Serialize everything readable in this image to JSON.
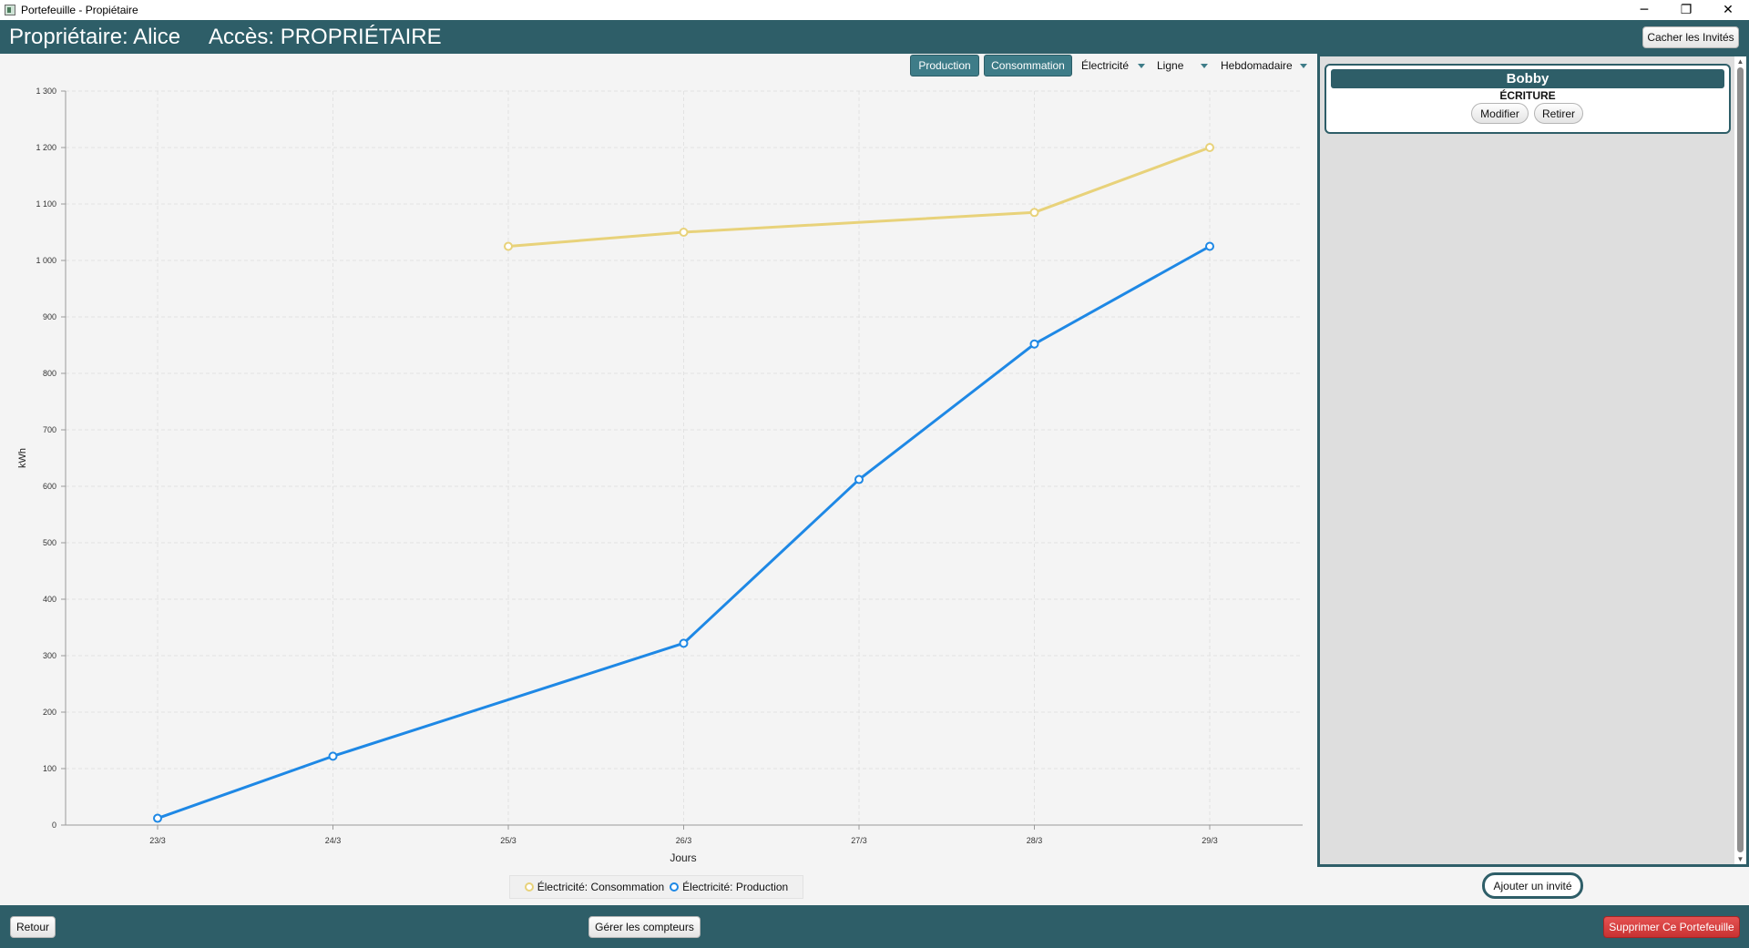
{
  "window": {
    "title": "Portefeuille - Propiétaire",
    "controls": {
      "minimize": "─",
      "maximize": "❐",
      "close": "✕"
    }
  },
  "header": {
    "owner": "Propriétaire: Alice",
    "access": "Accès: PROPRIÉTAIRE",
    "hide_guests_label": "Cacher les Invités"
  },
  "toolbar": {
    "production_label": "Production",
    "consumption_label": "Consommation",
    "energy_select": "Électricité",
    "chart_type_select": "Ligne",
    "period_select": "Hebdomadaire"
  },
  "colors": {
    "accent": "#2e5e68",
    "production_series": "#1e88e5",
    "consumption_series": "#e8d27a",
    "delete": "#d63b3b"
  },
  "chart_data": {
    "type": "line",
    "xlabel": "Jours",
    "ylabel": "kWh",
    "categories": [
      "23/3",
      "24/3",
      "25/3",
      "26/3",
      "27/3",
      "28/3",
      "29/3"
    ],
    "ylim": [
      0,
      1300
    ],
    "yticks": [
      "0",
      "100",
      "200",
      "300",
      "400",
      "500",
      "600",
      "700",
      "800",
      "900",
      "1 000",
      "1 100",
      "1 200",
      "1 300"
    ],
    "grid": true,
    "legend_position": "bottom",
    "series": [
      {
        "name": "Électricité: Consommation",
        "color": "#e8d27a",
        "values": [
          null,
          null,
          1025,
          1050,
          null,
          1085,
          1200
        ]
      },
      {
        "name": "Électricité: Production",
        "color": "#1e88e5",
        "values": [
          12,
          122,
          null,
          322,
          612,
          852,
          1025
        ]
      }
    ]
  },
  "guests": {
    "items": [
      {
        "name": "Bobby",
        "role": "ÉCRITURE",
        "edit_label": "Modifier",
        "remove_label": "Retirer"
      }
    ],
    "add_label": "Ajouter un invité"
  },
  "footer": {
    "back_label": "Retour",
    "manage_meters_label": "Gérer les compteurs",
    "delete_label": "Supprimer Ce Portefeuille"
  }
}
